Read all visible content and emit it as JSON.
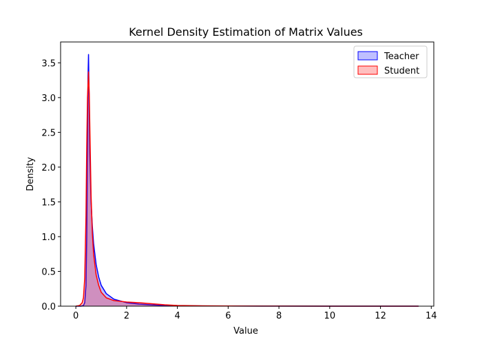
{
  "chart_data": {
    "type": "area",
    "title": "Kernel Density Estimation of Matrix Values",
    "xlabel": "Value",
    "ylabel": "Density",
    "xlim": [
      -0.6,
      14.1
    ],
    "ylim": [
      0,
      3.8
    ],
    "xticks": [
      0,
      2,
      4,
      6,
      8,
      10,
      12,
      14
    ],
    "yticks": [
      0.0,
      0.5,
      1.0,
      1.5,
      2.0,
      2.5,
      3.0,
      3.5
    ],
    "grid": false,
    "legend_position": "top-right",
    "series": [
      {
        "name": "Teacher",
        "color": "#0000ff",
        "fill": "#0000ff",
        "fill_opacity": 0.25,
        "x": [
          0.0,
          0.2,
          0.3,
          0.35,
          0.4,
          0.43,
          0.46,
          0.48,
          0.5,
          0.52,
          0.55,
          0.6,
          0.65,
          0.7,
          0.8,
          0.9,
          1.0,
          1.2,
          1.5,
          2.0,
          2.5,
          3.0,
          3.5,
          4.0,
          5.0,
          6.0,
          8.0,
          10.0,
          12.0,
          13.5
        ],
        "y": [
          0.0,
          0.0,
          0.01,
          0.05,
          0.3,
          1.0,
          2.4,
          3.3,
          3.62,
          3.1,
          2.2,
          1.5,
          1.15,
          0.9,
          0.6,
          0.42,
          0.3,
          0.18,
          0.1,
          0.05,
          0.03,
          0.018,
          0.01,
          0.006,
          0.003,
          0.002,
          0.001,
          0.0005,
          0.0002,
          0.0
        ]
      },
      {
        "name": "Student",
        "color": "#ff0000",
        "fill": "#ff0000",
        "fill_opacity": 0.25,
        "x": [
          0.0,
          0.15,
          0.25,
          0.3,
          0.35,
          0.4,
          0.43,
          0.46,
          0.5,
          0.53,
          0.56,
          0.6,
          0.65,
          0.7,
          0.8,
          0.9,
          1.0,
          1.2,
          1.5,
          2.0,
          2.5,
          3.0,
          3.5,
          4.0,
          5.0,
          6.0,
          8.0,
          10.0,
          12.0,
          13.5
        ],
        "y": [
          0.0,
          0.01,
          0.05,
          0.12,
          0.4,
          1.3,
          2.3,
          3.0,
          3.37,
          3.05,
          2.4,
          1.6,
          1.05,
          0.75,
          0.45,
          0.3,
          0.2,
          0.12,
          0.08,
          0.06,
          0.05,
          0.035,
          0.02,
          0.01,
          0.005,
          0.003,
          0.001,
          0.0005,
          0.0002,
          0.0
        ]
      }
    ]
  }
}
